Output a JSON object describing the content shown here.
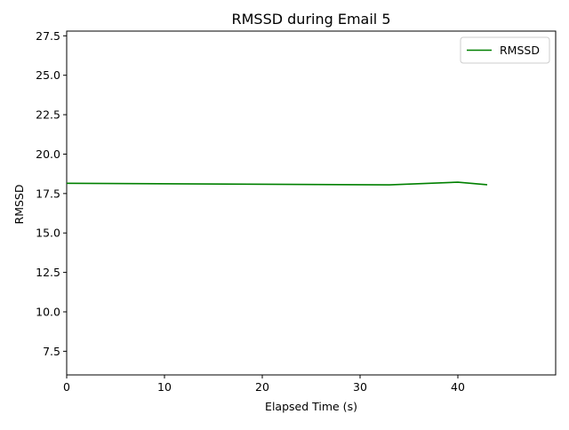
{
  "chart_data": {
    "type": "line",
    "title": "RMSSD during Email 5",
    "xlabel": "Elapsed Time (s)",
    "ylabel": "RMSSD",
    "xlim": [
      0,
      50
    ],
    "ylim": [
      6.0,
      27.8
    ],
    "x_ticks": [
      0,
      10,
      20,
      30,
      40
    ],
    "y_ticks": [
      7.5,
      10.0,
      12.5,
      15.0,
      17.5,
      20.0,
      22.5,
      25.0,
      27.5
    ],
    "y_tick_labels": [
      "7.5",
      "10.0",
      "12.5",
      "15.0",
      "17.5",
      "20.0",
      "22.5",
      "25.0",
      "27.5"
    ],
    "grid": false,
    "legend_position": "top-right",
    "series": [
      {
        "name": "RMSSD",
        "color": "#008000",
        "x": [
          0,
          33,
          40,
          43
        ],
        "y": [
          18.15,
          18.05,
          18.22,
          18.06
        ]
      }
    ]
  }
}
